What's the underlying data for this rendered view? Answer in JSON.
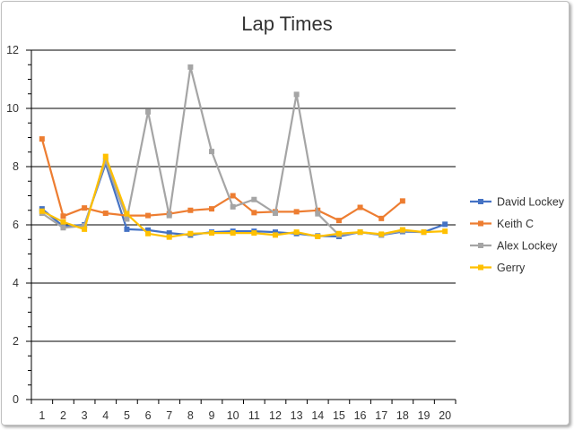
{
  "chart_data": {
    "type": "line",
    "title": "Lap Times",
    "xlabel": "",
    "ylabel": "",
    "x": [
      1,
      2,
      3,
      4,
      5,
      6,
      7,
      8,
      9,
      10,
      11,
      12,
      13,
      14,
      15,
      16,
      17,
      18,
      19,
      20
    ],
    "ylim": [
      0,
      12
    ],
    "yticks": [
      0,
      2,
      4,
      6,
      8,
      10,
      12
    ],
    "grid": "horizontal",
    "legend": "right",
    "series": [
      {
        "name": "David Lockey",
        "color": "#4472C4",
        "values": [
          6.55,
          5.95,
          6.0,
          8.1,
          5.85,
          5.82,
          5.72,
          5.65,
          5.75,
          5.78,
          5.78,
          5.75,
          5.7,
          5.62,
          5.6,
          5.75,
          5.65,
          5.77,
          5.75,
          6.02
        ]
      },
      {
        "name": "Keith C",
        "color": "#ED7D31",
        "values": [
          8.95,
          6.3,
          6.58,
          6.4,
          6.32,
          6.32,
          6.38,
          6.5,
          6.55,
          7.0,
          6.42,
          6.45,
          6.45,
          6.5,
          6.15,
          6.6,
          6.22,
          6.82,
          null,
          null
        ]
      },
      {
        "name": "Alex Lockey",
        "color": "#A5A5A5",
        "values": [
          6.4,
          5.9,
          5.97,
          8.2,
          6.2,
          9.88,
          6.32,
          11.42,
          8.52,
          6.62,
          6.87,
          6.4,
          10.48,
          6.38,
          5.65,
          5.75,
          5.66,
          5.8,
          5.75,
          null
        ]
      },
      {
        "name": "Gerry",
        "color": "#FFC000",
        "values": [
          6.47,
          6.1,
          5.85,
          8.35,
          6.38,
          5.7,
          5.58,
          5.7,
          5.72,
          5.72,
          5.72,
          5.65,
          5.75,
          5.6,
          5.7,
          5.75,
          5.68,
          5.83,
          5.75,
          5.78
        ]
      }
    ]
  }
}
